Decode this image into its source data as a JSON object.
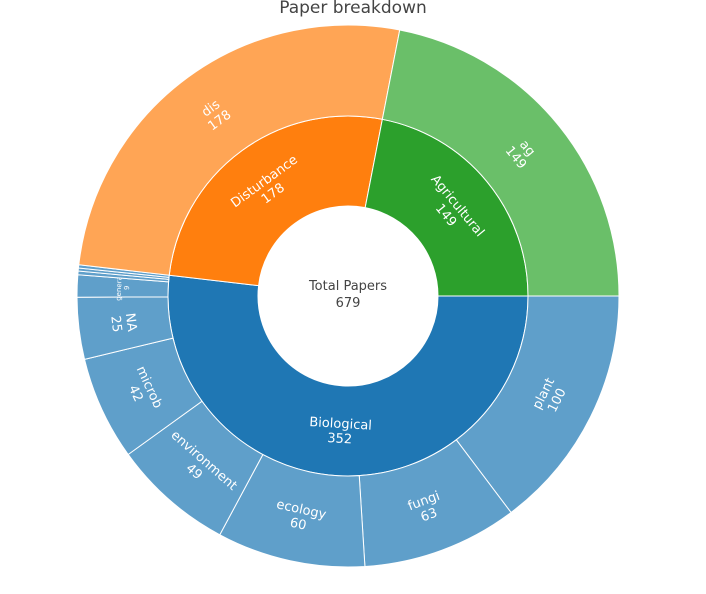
{
  "chart_data": {
    "type": "sunburst",
    "title": "Paper breakdown",
    "root": {
      "label": "Total Papers",
      "value": 679
    },
    "categories": [
      {
        "label": "Biological",
        "value": 352,
        "color": "#1f77b4",
        "child_color": "#5f9fca",
        "children": [
          {
            "label": "plant",
            "value": 100
          },
          {
            "label": "fungi",
            "value": 63
          },
          {
            "label": "ecology",
            "value": 60
          },
          {
            "label": "environment",
            "value": 49
          },
          {
            "label": "microb",
            "value": 42
          },
          {
            "label": "NA",
            "value": 25
          },
          {
            "label": "general",
            "value": 9
          },
          {
            "label": "",
            "value": 1.5
          },
          {
            "label": "",
            "value": 1.2
          },
          {
            "label": "",
            "value": 1.3
          }
        ]
      },
      {
        "label": "Disturbance",
        "value": 178,
        "color": "#ff7f0e",
        "child_color": "#ffa555",
        "children": [
          {
            "label": "dis",
            "value": 178
          }
        ]
      },
      {
        "label": "Agricultural",
        "value": 149,
        "color": "#2ca02c",
        "child_color": "#6abf69",
        "children": [
          {
            "label": "ag",
            "value": 149
          }
        ]
      }
    ]
  }
}
